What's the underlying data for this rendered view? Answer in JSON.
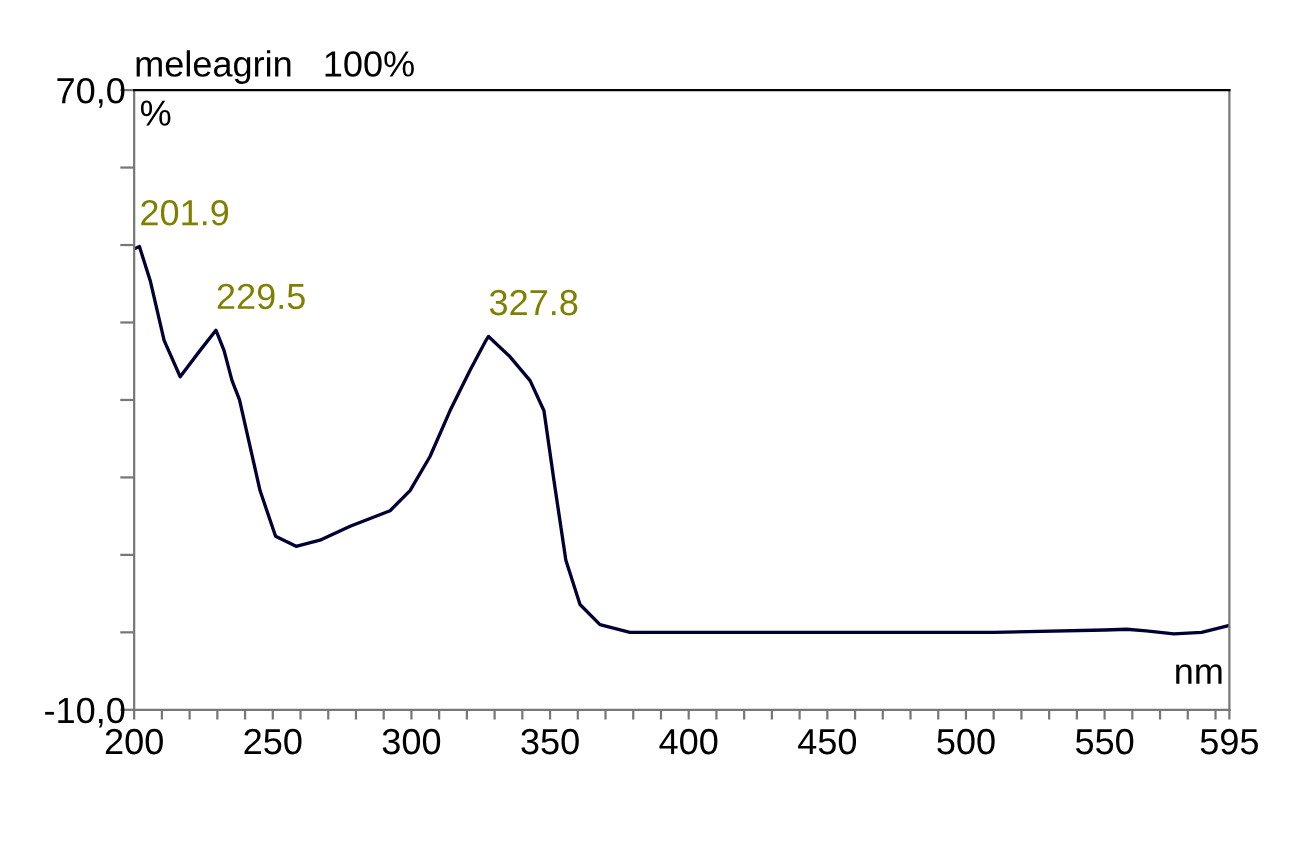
{
  "chart_data": {
    "type": "line",
    "title": "meleagrin   100%",
    "xlabel": "nm",
    "ylabel": "%",
    "x": [
      200,
      201.9,
      205.8,
      210.8,
      216.6,
      223.8,
      229.5,
      232.4,
      235.3,
      238,
      245.4,
      251,
      258.4,
      267,
      277.9,
      292.3,
      299.5,
      306.7,
      313.9,
      321.1,
      326.9,
      327.8,
      335.5,
      342.8,
      347.8,
      351.4,
      355.7,
      360.8,
      368,
      378.8,
      450,
      510,
      550,
      558,
      565,
      575,
      585,
      595
    ],
    "series": [
      {
        "color": "#000033",
        "values": [
          49.5,
          49.8,
          45.4,
          37.7,
          33.0,
          36.4,
          39.0,
          36.4,
          32.5,
          30.0,
          18.3,
          12.4,
          11.1,
          11.9,
          13.7,
          15.7,
          18.3,
          22.7,
          28.6,
          33.8,
          37.7,
          38.2,
          35.6,
          32.5,
          28.6,
          19.6,
          9.3,
          3.6,
          1.0,
          0.0,
          0.0,
          0.0,
          0.3,
          0.4,
          0.2,
          -0.2,
          0.0,
          0.9
        ]
      }
    ],
    "annotations": [
      {
        "text": "201.9",
        "x": 201.9,
        "y": 49.8
      },
      {
        "text": "229.5",
        "x": 229.5,
        "y": 39.0
      },
      {
        "text": "327.8",
        "x": 327.8,
        "y": 38.2
      }
    ],
    "xlim": [
      200,
      595
    ],
    "ylim": [
      -10,
      70
    ],
    "xticks": [
      200,
      {
        "value": 210,
        "label": null
      },
      {
        "value": 220,
        "label": null
      },
      {
        "value": 230,
        "label": null
      },
      {
        "value": 240,
        "label": null
      },
      250,
      {
        "value": 260,
        "label": null
      },
      {
        "value": 270,
        "label": null
      },
      {
        "value": 280,
        "label": null
      },
      {
        "value": 290,
        "label": null
      },
      300,
      {
        "value": 310,
        "label": null
      },
      {
        "value": 320,
        "label": null
      },
      {
        "value": 330,
        "label": null
      },
      {
        "value": 340,
        "label": null
      },
      350,
      {
        "value": 360,
        "label": null
      },
      {
        "value": 370,
        "label": null
      },
      {
        "value": 380,
        "label": null
      },
      {
        "value": 390,
        "label": null
      },
      400,
      {
        "value": 410,
        "label": null
      },
      {
        "value": 420,
        "label": null
      },
      {
        "value": 430,
        "label": null
      },
      {
        "value": 440,
        "label": null
      },
      450,
      {
        "value": 460,
        "label": null
      },
      {
        "value": 470,
        "label": null
      },
      {
        "value": 480,
        "label": null
      },
      {
        "value": 490,
        "label": null
      },
      500,
      {
        "value": 510,
        "label": null
      },
      {
        "value": 520,
        "label": null
      },
      {
        "value": 530,
        "label": null
      },
      {
        "value": 540,
        "label": null
      },
      550,
      {
        "value": 560,
        "label": null
      },
      {
        "value": 570,
        "label": null
      },
      {
        "value": 580,
        "label": null
      },
      {
        "value": 590,
        "label": null
      },
      595
    ],
    "yticks": [
      {
        "value": -10,
        "label": "-10,0"
      },
      {
        "value": 0,
        "label": null
      },
      {
        "value": 10,
        "label": null
      },
      {
        "value": 20,
        "label": null
      },
      {
        "value": 30,
        "label": null
      },
      {
        "value": 40,
        "label": null
      },
      {
        "value": 50,
        "label": null
      },
      {
        "value": 60,
        "label": null
      },
      {
        "value": 70,
        "label": "70,0"
      }
    ],
    "grid": false,
    "marker": "none",
    "line_style": "solid"
  }
}
